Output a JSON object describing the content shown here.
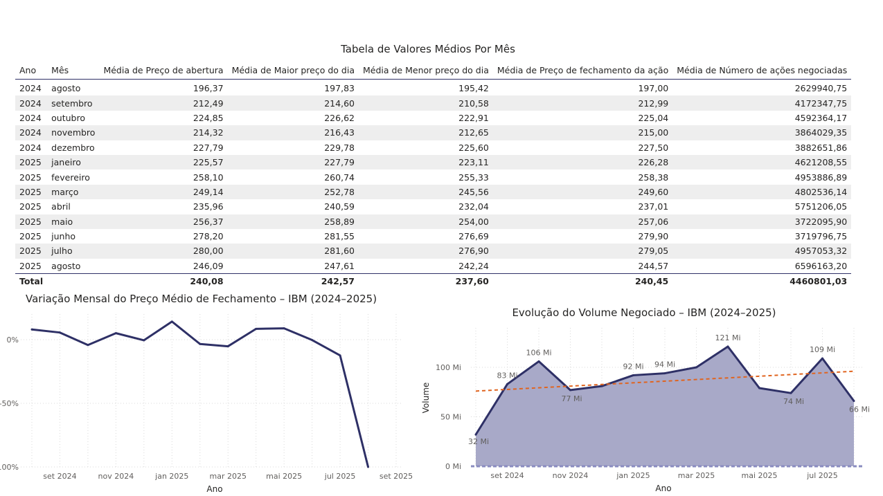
{
  "table": {
    "title": "Tabela de Valores Médios Por Mês",
    "headers": [
      "Ano",
      "Mês",
      "Média de Preço de abertura",
      "Média de Maior preço do dia",
      "Média de Menor preço do dia",
      "Média de Preço de fechamento da ação",
      "Média de Número de ações negociadas"
    ],
    "rows": [
      [
        "2024",
        "agosto",
        "196,37",
        "197,83",
        "195,42",
        "197,00",
        "2629940,75"
      ],
      [
        "2024",
        "setembro",
        "212,49",
        "214,60",
        "210,58",
        "212,99",
        "4172347,75"
      ],
      [
        "2024",
        "outubro",
        "224,85",
        "226,62",
        "222,91",
        "225,04",
        "4592364,17"
      ],
      [
        "2024",
        "novembro",
        "214,32",
        "216,43",
        "212,65",
        "215,00",
        "3864029,35"
      ],
      [
        "2024",
        "dezembro",
        "227,79",
        "229,78",
        "225,60",
        "227,50",
        "3882651,86"
      ],
      [
        "2025",
        "janeiro",
        "225,57",
        "227,79",
        "223,11",
        "226,28",
        "4621208,55"
      ],
      [
        "2025",
        "fevereiro",
        "258,10",
        "260,74",
        "255,33",
        "258,38",
        "4953886,89"
      ],
      [
        "2025",
        "março",
        "249,14",
        "252,78",
        "245,56",
        "249,60",
        "4802536,14"
      ],
      [
        "2025",
        "abril",
        "235,96",
        "240,59",
        "232,04",
        "237,01",
        "5751206,05"
      ],
      [
        "2025",
        "maio",
        "256,37",
        "258,89",
        "254,00",
        "257,06",
        "3722095,90"
      ],
      [
        "2025",
        "junho",
        "278,20",
        "281,55",
        "276,69",
        "279,90",
        "3719796,75"
      ],
      [
        "2025",
        "julho",
        "280,00",
        "281,60",
        "276,90",
        "279,05",
        "4957053,32"
      ],
      [
        "2025",
        "agosto",
        "246,09",
        "247,61",
        "242,24",
        "244,57",
        "6596163,20"
      ]
    ],
    "total": [
      "Total",
      "",
      "240,08",
      "242,57",
      "237,60",
      "240,45",
      "4460801,03"
    ]
  },
  "chart_data": [
    {
      "type": "line",
      "title": "Variação Mensal do Preço Médio de Fechamento – IBM (2024–2025)",
      "xlabel": "Ano",
      "ylabel": "",
      "ylim": [
        -100,
        22
      ],
      "y_ticks": [
        {
          "value": 0,
          "label": "0%"
        },
        {
          "value": -50,
          "label": "-50%"
        },
        {
          "value": -100,
          "label": "-100%"
        }
      ],
      "x_ticks": [
        "set 2024",
        "nov 2024",
        "jan 2025",
        "mar 2025",
        "mai 2025",
        "jul 2025",
        "set 2025"
      ],
      "x": [
        "2024-08",
        "2024-09",
        "2024-10",
        "2024-11",
        "2024-12",
        "2025-01",
        "2025-02",
        "2025-03",
        "2025-04",
        "2025-05",
        "2025-06",
        "2025-07",
        "2025-08",
        "2025-09"
      ],
      "series": [
        {
          "values": [
            8,
            5.6,
            -4.2,
            5.1,
            -0.5,
            14.2,
            -3.4,
            -5.2,
            8.5,
            8.9,
            -0.3,
            -12.4,
            -100,
            null
          ]
        }
      ],
      "grid": true,
      "color": "#2e3066"
    },
    {
      "type": "area",
      "title": "Evolução do Volume Negociado – IBM (2024–2025)",
      "xlabel": "Ano",
      "ylabel": "Volume",
      "ylim": [
        0,
        125
      ],
      "y_ticks": [
        {
          "value": 0,
          "label": "0 Mi"
        },
        {
          "value": 50,
          "label": "50 Mi"
        },
        {
          "value": 100,
          "label": "100 Mi"
        }
      ],
      "x_ticks": [
        "set 2024",
        "nov 2024",
        "jan 2025",
        "mar 2025",
        "mai 2025",
        "jul 2025"
      ],
      "x": [
        "2024-07",
        "2024-08",
        "2024-09",
        "2024-10",
        "2024-11",
        "2024-12",
        "2025-01",
        "2025-02",
        "2025-03",
        "2025-04",
        "2025-05",
        "2025-06",
        "2025-07",
        "2025-08"
      ],
      "series": [
        {
          "values": [
            32,
            83,
            106,
            77,
            81,
            92,
            94,
            100,
            121,
            79,
            74,
            109,
            66,
            null
          ],
          "data_labels": [
            "32 Mi",
            "83 Mi",
            "106 Mi",
            "77 Mi",
            "",
            "92 Mi",
            "94 Mi",
            "",
            "121 Mi",
            "",
            "74 Mi",
            "109 Mi",
            "66 Mi",
            ""
          ]
        }
      ],
      "trend_line": {
        "start": 76,
        "end": 96,
        "color": "#e0641f"
      },
      "grid": true,
      "line_color": "#2e3066",
      "fill_color": "#a8a9c8"
    }
  ]
}
